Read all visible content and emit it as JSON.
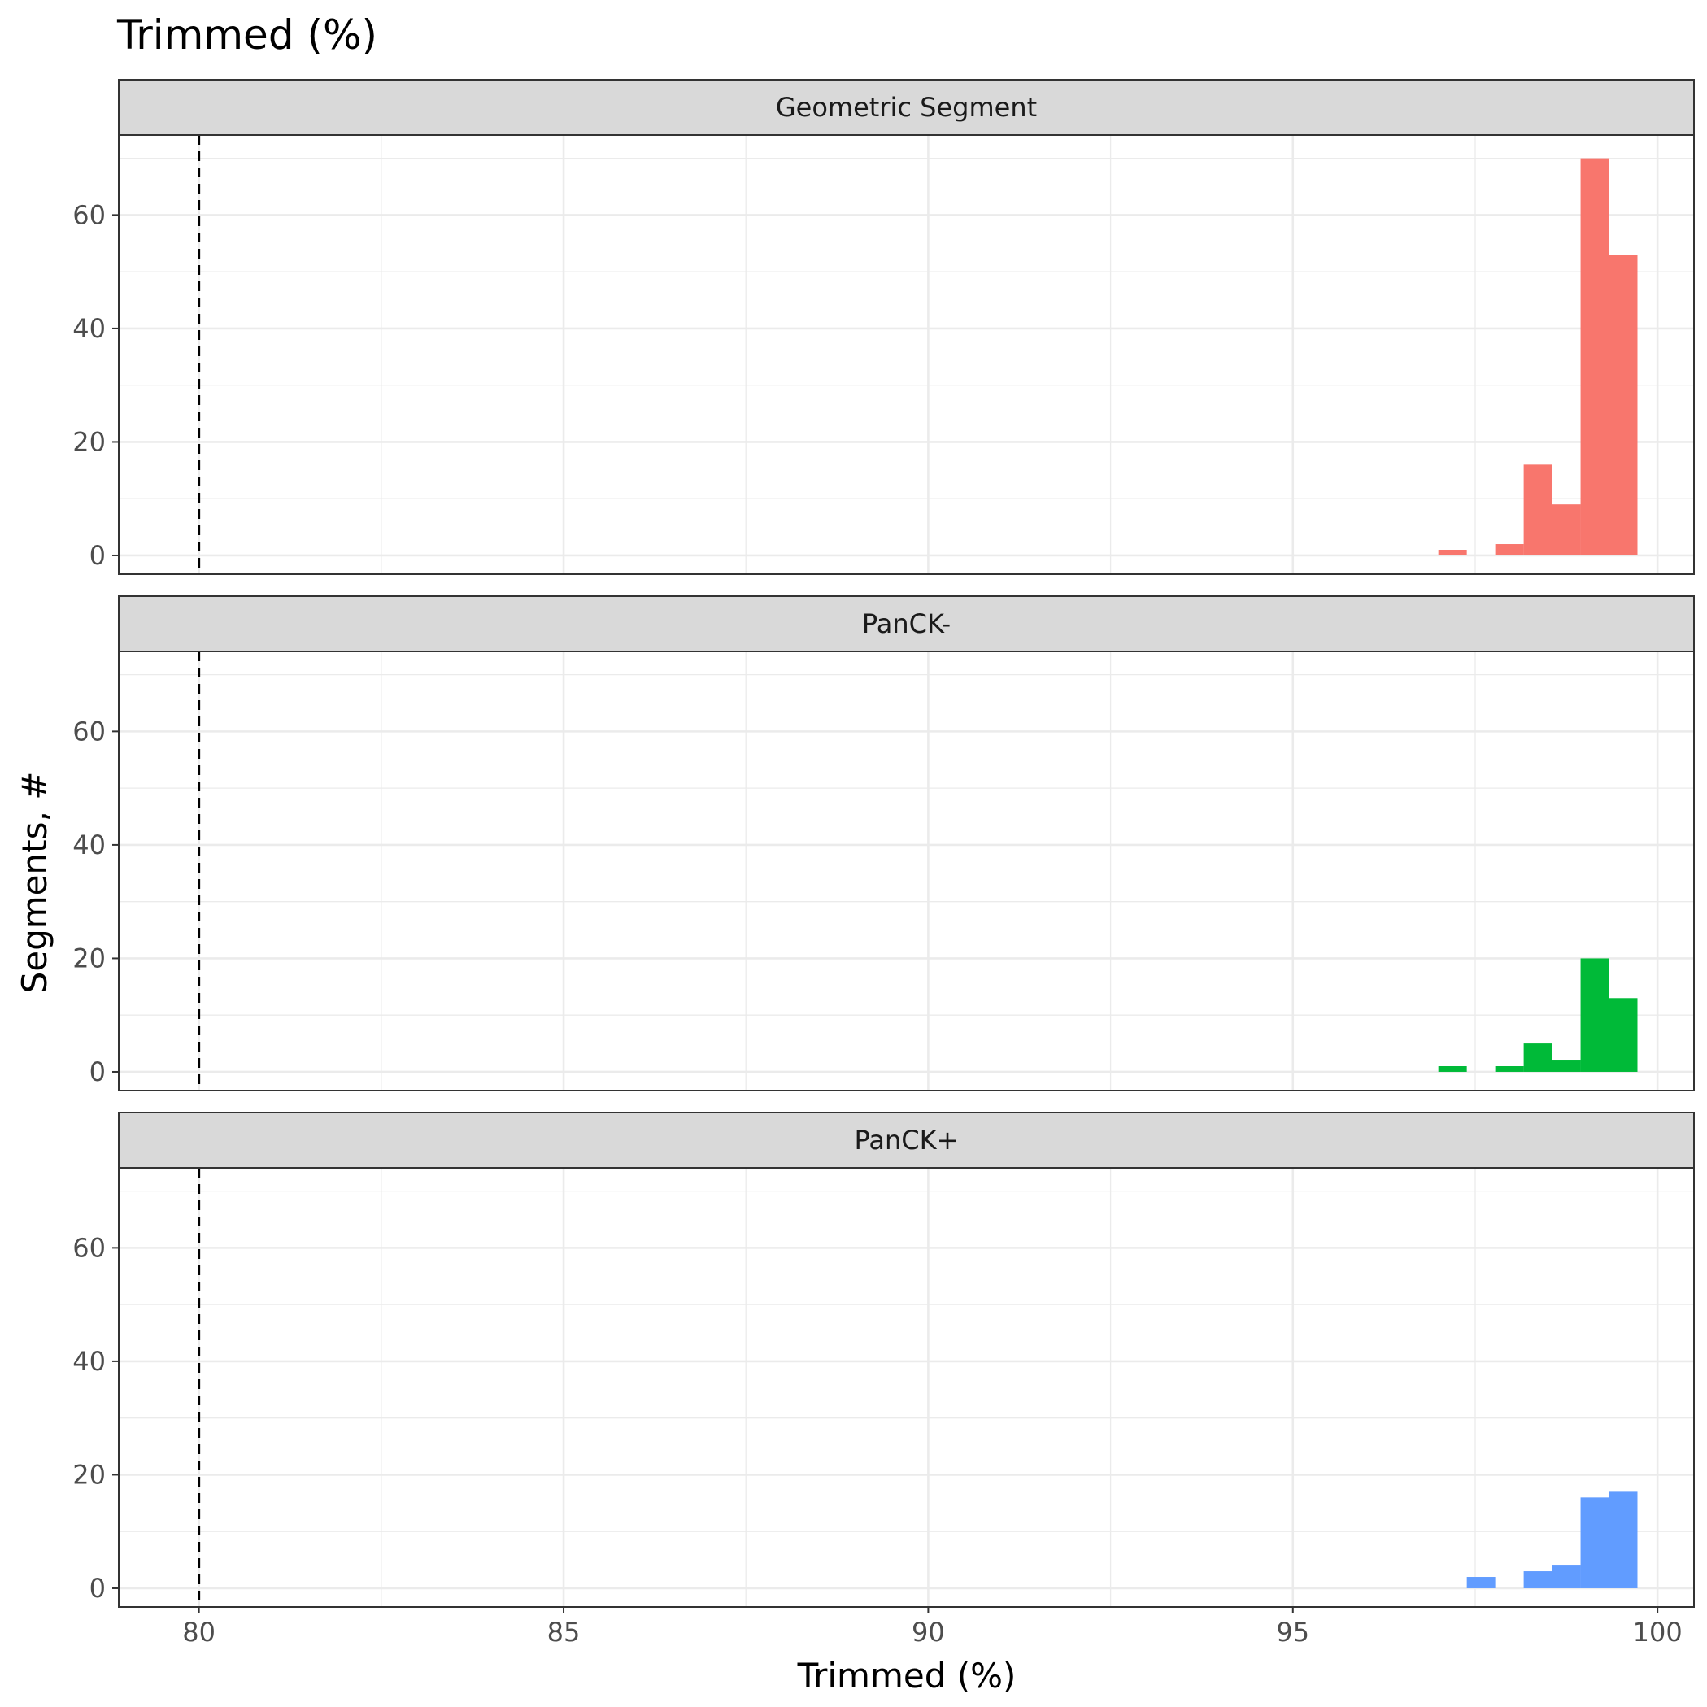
{
  "chart_data": {
    "type": "bar",
    "title": "Trimmed (%)",
    "xlabel": "Trimmed (%)",
    "ylabel": "Segments, #",
    "xlim": [
      78.9,
      100.5
    ],
    "ylim": [
      -3.3,
      74.1
    ],
    "x_ticks": [
      80,
      85,
      90,
      95,
      100
    ],
    "y_ticks": [
      0,
      20,
      40,
      60
    ],
    "bin_width": 0.39,
    "threshold": 80,
    "grid": true,
    "legend": "none",
    "panels": [
      {
        "name": "Geometric Segment",
        "color": "#F8766D",
        "bins": [
          {
            "x": 97.19,
            "y": 1
          },
          {
            "x": 97.97,
            "y": 2
          },
          {
            "x": 98.36,
            "y": 16
          },
          {
            "x": 98.75,
            "y": 9
          },
          {
            "x": 99.14,
            "y": 70
          },
          {
            "x": 99.53,
            "y": 53
          }
        ]
      },
      {
        "name": "PanCK-",
        "color": "#00BA38",
        "bins": [
          {
            "x": 97.19,
            "y": 1
          },
          {
            "x": 97.97,
            "y": 1
          },
          {
            "x": 98.36,
            "y": 5
          },
          {
            "x": 98.75,
            "y": 2
          },
          {
            "x": 99.14,
            "y": 20
          },
          {
            "x": 99.53,
            "y": 13
          }
        ]
      },
      {
        "name": "PanCK+",
        "color": "#619CFF",
        "bins": [
          {
            "x": 97.58,
            "y": 2
          },
          {
            "x": 98.36,
            "y": 3
          },
          {
            "x": 98.75,
            "y": 4
          },
          {
            "x": 99.14,
            "y": 16
          },
          {
            "x": 99.53,
            "y": 17
          }
        ]
      }
    ]
  }
}
